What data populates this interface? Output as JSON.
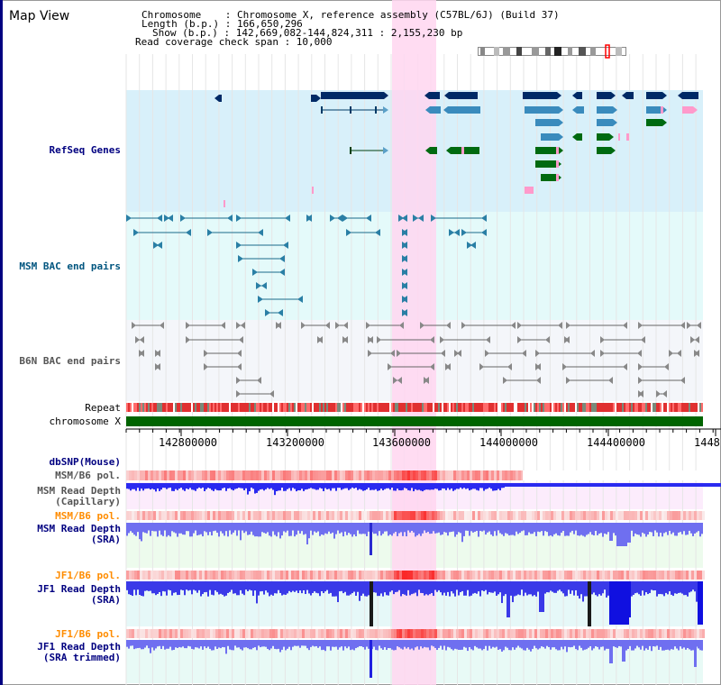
{
  "title": "Map View",
  "header": {
    "chromosome_line": "Chromosome    : Chromosome X, reference assembly (C57BL/6J) (Build 37)",
    "length_line": "Length (b.p.) : 166,650,296",
    "show_line": "Show (b.p.) : 142,669,082-144,824,311 : 2,155,230 bp",
    "span_line": "Read coverage check span : 10,000"
  },
  "tracks": {
    "refseq": "RefSeq Genes",
    "msm_bac": "MSM BAC end pairs",
    "b6n_bac": "B6N BAC end pairs",
    "repeat": "Repeat",
    "chromosome": "chromosome X",
    "dbsnp": "dbSNP(Mouse)",
    "msm_pol": "MSM/B6 pol.",
    "msm_depth_cap_1": "MSM Read Depth",
    "msm_depth_cap_2": "(Capillary)",
    "msm_pol2": "MSM/B6 pol.",
    "msm_depth_sra_1": "MSM Read Depth",
    "msm_depth_sra_2": "(SRA)",
    "jf1_pol": "JF1/B6 pol.",
    "jf1_depth_sra_1": "JF1 Read Depth",
    "jf1_depth_sra_2": "(SRA)",
    "jf1_pol2": "JF1/B6 pol.",
    "jf1_depth_trim_1": "JF1 Read Depth",
    "jf1_depth_trim_2": "(SRA trimmed)"
  },
  "axis": {
    "ticks": [
      "142800000",
      "143200000",
      "143600000",
      "144000000",
      "144400000",
      "1448"
    ]
  },
  "colors": {
    "highlight": "#ffd6f0",
    "refseq_bg": "#d8f0fa",
    "msm_bac_bg": "#e4fafa",
    "b6n_bac_bg": "#f4f6fa",
    "gene_navy": "#002a66",
    "gene_steel": "#3a8bbd",
    "gene_green": "#006a10",
    "gene_pink": "#ff9acb",
    "chromosome_green": "#006400",
    "depth_blue": "#2222ee",
    "depth_light": "#6f6ff0",
    "pol_red": "#f04040"
  }
}
